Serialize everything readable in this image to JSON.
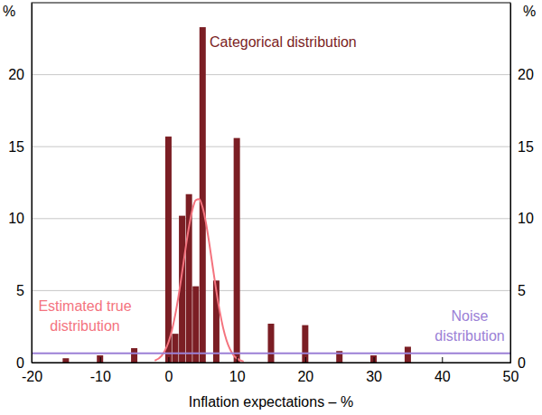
{
  "chart_data": {
    "type": "bar",
    "y_label": "%",
    "x_label": "Inflation expectations – %",
    "xlim": [
      -20,
      50
    ],
    "xticks": [
      -20,
      -10,
      0,
      10,
      20,
      30,
      40,
      50
    ],
    "ylim": [
      0,
      25
    ],
    "yticks": [
      0,
      5,
      10,
      15,
      20
    ],
    "grid": true,
    "series": [
      {
        "name": "Categorical distribution",
        "type": "bar",
        "color": "#7b1e24",
        "x": [
          -15,
          -10,
          -5,
          0,
          1,
          2,
          3,
          4,
          5,
          7,
          10,
          15,
          20,
          25,
          30,
          35
        ],
        "values": [
          0.3,
          0.5,
          1.0,
          15.7,
          2.0,
          10.2,
          11.7,
          5.3,
          23.3,
          5.7,
          15.6,
          2.7,
          2.6,
          0.8,
          0.5,
          1.1
        ]
      },
      {
        "name": "Estimated true distribution",
        "type": "line",
        "color": "#f4737e",
        "x": [
          -2,
          -1,
          -0.5,
          0,
          0.5,
          1,
          1.5,
          2,
          2.5,
          3,
          3.5,
          4,
          4.5,
          5,
          5.5,
          6,
          6.5,
          7,
          7.5,
          8,
          8.5,
          9,
          9.5,
          10,
          11
        ],
        "values": [
          0.13,
          0.47,
          0.84,
          1.4,
          2.22,
          3.32,
          4.69,
          6.26,
          7.9,
          9.41,
          10.6,
          11.28,
          11.35,
          10.78,
          9.68,
          8.21,
          6.58,
          4.99,
          3.57,
          2.41,
          1.54,
          0.93,
          0.53,
          0.29,
          0.07
        ]
      },
      {
        "name": "Noise distribution",
        "type": "line",
        "color": "#9b7fd6",
        "x": [
          -20,
          50
        ],
        "values": [
          0.65,
          0.65
        ]
      }
    ]
  }
}
